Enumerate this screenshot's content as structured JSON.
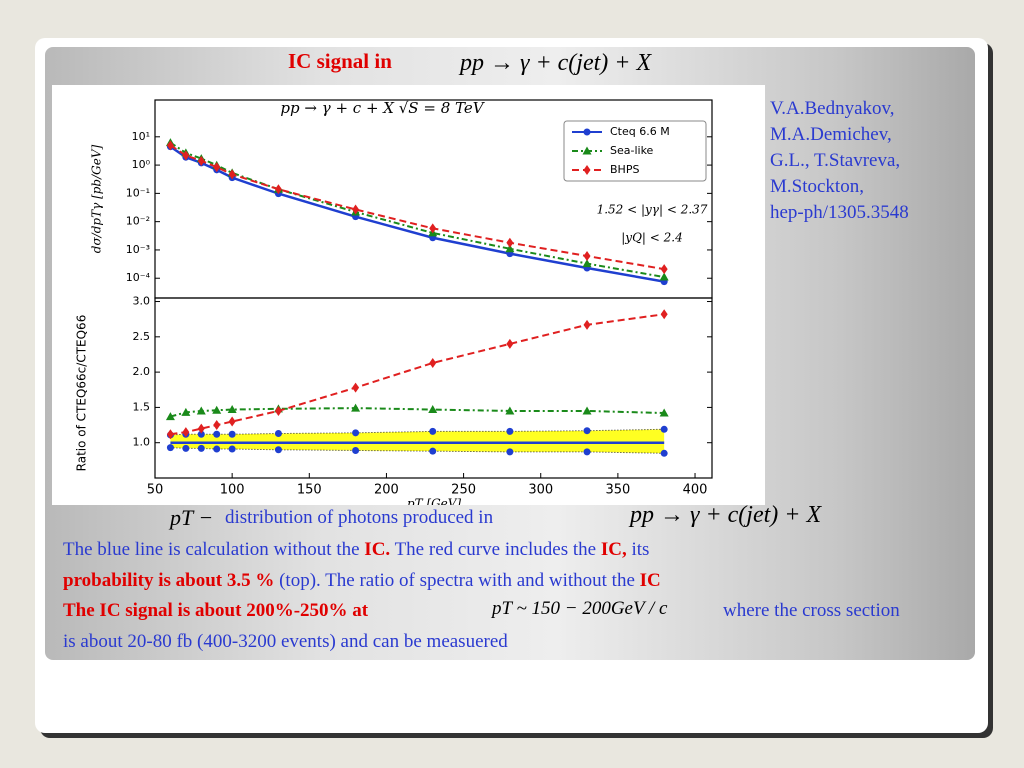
{
  "slide_title": "IC signal  in",
  "title_formula": "pp → γ + c(jet) + X",
  "authors": [
    "V.A.Bednyakov,",
    "M.A.Demichev,",
    "G.L., T.Stavreva,",
    "M.Stockton,",
    "hep-ph/1305.3548"
  ],
  "caption_formula_1": "pT −",
  "caption_text_1": "distribution  of  photons   produced  in",
  "caption_formula_2": "pp → γ + c(jet) + X",
  "body": {
    "line2": [
      "The blue line is calculation without  the ",
      "IC.",
      " The red curve includes   the ",
      "IC,",
      " its"
    ],
    "line3": [
      "probability is about 3.5 %",
      "  (top).  The ratio of spectra with  and without the ",
      "IC"
    ],
    "line4": [
      "The IC signal is about 200%-250% at",
      "pT ~ 150 − 200GeV / c",
      "where the cross section"
    ],
    "line5": [
      "is about 20-80 fb (400-3200 events) and can be measuered"
    ]
  },
  "chart_data": [
    {
      "type": "line",
      "title": "pp → γ + c + X       √S = 8 TeV",
      "y_label": "dσ/dpTγ [pb/GeV]",
      "log_y": true,
      "x": [
        60,
        70,
        80,
        90,
        100,
        130,
        180,
        230,
        280,
        330,
        380
      ],
      "xlim": [
        50,
        411
      ],
      "ylim": [
        2e-05,
        200
      ],
      "yticks": [
        {
          "value": 10,
          "label": "10¹"
        },
        {
          "value": 1,
          "label": "10⁰"
        },
        {
          "value": 0.1,
          "label": "10⁻¹"
        },
        {
          "value": 0.01,
          "label": "10⁻²"
        },
        {
          "value": 0.001,
          "label": "10⁻³"
        },
        {
          "value": 0.0001,
          "label": "10⁻⁴"
        }
      ],
      "legend": "upper right",
      "annotations": [
        "1.52 < |yγ| < 2.37",
        "|yQ| < 2.4"
      ],
      "series": [
        {
          "name": "Cteq 6.6 M",
          "color": "#1f3fd0",
          "marker": "circle",
          "line_style": "solid",
          "values": [
            4.5,
            1.9,
            1.2,
            0.68,
            0.36,
            0.098,
            0.015,
            0.0027,
            0.00074,
            0.00023,
            7.6e-05
          ]
        },
        {
          "name": "Sea-like",
          "color": "#1a8a1a",
          "marker": "triangle",
          "line_style": "dashdot",
          "values": [
            6.2,
            2.7,
            1.7,
            0.99,
            0.53,
            0.14,
            0.022,
            0.004,
            0.0011,
            0.00033,
            0.00011
          ]
        },
        {
          "name": "BHPS",
          "color": "#e02020",
          "marker": "diamond",
          "line_style": "dashed",
          "values": [
            5.0,
            2.2,
            1.4,
            0.85,
            0.47,
            0.14,
            0.027,
            0.0058,
            0.0018,
            0.00061,
            0.00021
          ]
        }
      ]
    },
    {
      "type": "line",
      "y_label": "Ratio of CTEQ66c/CTEQ66",
      "x_label": "pT [GeV]",
      "x": [
        60,
        70,
        80,
        90,
        100,
        130,
        180,
        230,
        280,
        330,
        380
      ],
      "xlim": [
        50,
        411
      ],
      "xticks": [
        50,
        100,
        150,
        200,
        250,
        300,
        350,
        400
      ],
      "ylim": [
        0.5,
        3.05
      ],
      "yticks": [
        {
          "value": 3,
          "label": "3.0"
        },
        {
          "value": 2.5,
          "label": "2.5"
        },
        {
          "value": 2,
          "label": "2.0"
        },
        {
          "value": 1.5,
          "label": "1.5"
        },
        {
          "value": 1,
          "label": "1.0"
        }
      ],
      "band_color": "#ffff22",
      "band_upper": [
        1.11,
        1.12,
        1.12,
        1.12,
        1.12,
        1.13,
        1.14,
        1.16,
        1.16,
        1.17,
        1.19
      ],
      "band_lower": [
        0.93,
        0.92,
        0.92,
        0.91,
        0.91,
        0.9,
        0.89,
        0.88,
        0.87,
        0.87,
        0.85
      ],
      "series": [
        {
          "color": "#1f3fd0",
          "line_style": "solid",
          "values": [
            1,
            1,
            1,
            1,
            1,
            1,
            1,
            1,
            1,
            1,
            1
          ]
        },
        {
          "color": "#1a8a1a",
          "marker": "triangle",
          "line_style": "dashdot",
          "values": [
            1.37,
            1.43,
            1.45,
            1.46,
            1.47,
            1.48,
            1.49,
            1.47,
            1.45,
            1.45,
            1.42
          ]
        },
        {
          "color": "#e02020",
          "marker": "diamond",
          "line_style": "dashed",
          "values": [
            1.12,
            1.15,
            1.2,
            1.25,
            1.3,
            1.45,
            1.78,
            2.13,
            2.4,
            2.67,
            2.82
          ]
        }
      ]
    }
  ]
}
